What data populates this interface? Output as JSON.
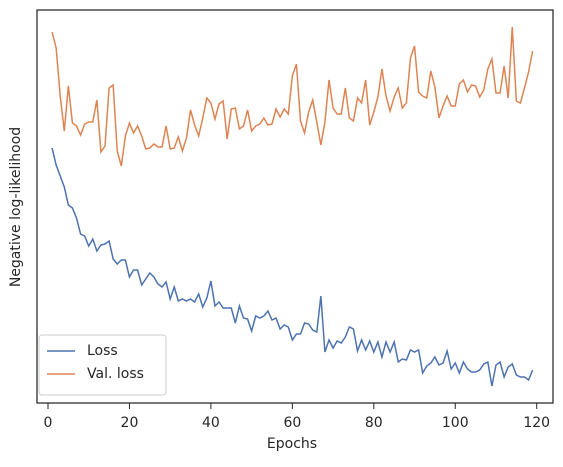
{
  "chart_data": {
    "type": "line",
    "x_label": "Epochs",
    "y_label": "Negative log-likelihood",
    "x": [
      1,
      2,
      3,
      4,
      5,
      6,
      7,
      8,
      9,
      10,
      11,
      12,
      13,
      14,
      15,
      16,
      17,
      18,
      19,
      20,
      21,
      22,
      23,
      24,
      25,
      26,
      27,
      28,
      29,
      30,
      31,
      32,
      33,
      34,
      35,
      36,
      37,
      38,
      39,
      40,
      41,
      42,
      43,
      44,
      45,
      46,
      47,
      48,
      49,
      50,
      51,
      52,
      53,
      54,
      55,
      56,
      57,
      58,
      59,
      60,
      61,
      62,
      63,
      64,
      65,
      66,
      67,
      68,
      69,
      70,
      71,
      72,
      73,
      74,
      75,
      76,
      77,
      78,
      79,
      80,
      81,
      82,
      83,
      84,
      85,
      86,
      87,
      88,
      89,
      90,
      91,
      92,
      93,
      94,
      95,
      96,
      97,
      98,
      99,
      100,
      101,
      102,
      103,
      104,
      105,
      106,
      107,
      108,
      109,
      110,
      111,
      112,
      113,
      114,
      115,
      116,
      117,
      118,
      119
    ],
    "series": [
      {
        "name": "Loss",
        "color": "#4c72b0",
        "values": [
          255,
          238,
          227,
          216,
          198,
          195,
          185,
          169,
          167,
          157,
          164,
          152,
          158,
          159,
          162,
          144,
          139,
          143,
          143,
          126,
          133,
          133,
          118,
          124,
          130,
          126,
          119,
          116,
          121,
          104,
          116,
          102,
          104,
          102,
          104,
          101,
          109,
          96,
          105,
          122,
          97,
          101,
          95,
          95,
          95,
          80,
          97,
          85,
          84,
          72,
          87,
          85,
          87,
          92,
          83,
          85,
          74,
          78,
          76,
          63,
          69,
          69,
          80,
          79,
          73,
          71,
          107,
          51,
          63,
          55,
          62,
          60,
          66,
          76,
          74,
          52,
          63,
          53,
          62,
          51,
          61,
          46,
          61,
          51,
          61,
          41,
          44,
          43,
          53,
          51,
          53,
          30,
          37,
          40,
          46,
          38,
          40,
          52,
          34,
          40,
          30,
          41,
          34,
          31,
          31,
          33,
          39,
          41,
          17,
          38,
          41,
          26,
          36,
          39,
          28,
          26,
          26,
          23,
          33
        ]
      },
      {
        "name": "Val. loss",
        "color": "#dd8452",
        "values": [
          371,
          355,
          307,
          272,
          317,
          280,
          277,
          268,
          279,
          281,
          281,
          303,
          251,
          257,
          315,
          318,
          252,
          237,
          267,
          280,
          270,
          277,
          267,
          254,
          255,
          259,
          256,
          256,
          277,
          254,
          255,
          266,
          252,
          265,
          293,
          278,
          267,
          285,
          305,
          300,
          284,
          299,
          302,
          264,
          294,
          295,
          274,
          277,
          293,
          272,
          277,
          279,
          285,
          278,
          279,
          294,
          286,
          294,
          289,
          327,
          339,
          282,
          270,
          291,
          303,
          281,
          258,
          281,
          323,
          295,
          289,
          289,
          315,
          285,
          282,
          305,
          300,
          323,
          278,
          291,
          306,
          334,
          307,
          292,
          306,
          315,
          295,
          300,
          345,
          357,
          311,
          307,
          305,
          332,
          316,
          285,
          297,
          307,
          297,
          297,
          319,
          323,
          311,
          318,
          317,
          306,
          313,
          334,
          344,
          310,
          310,
          337,
          305,
          376,
          302,
          300,
          315,
          331,
          352
        ]
      }
    ],
    "xlim": [
      -2.7,
      124
    ],
    "xticks": [
      0,
      20,
      40,
      60,
      80,
      100,
      120
    ],
    "ylim": [
      0,
      393
    ],
    "legend": "lower left"
  }
}
